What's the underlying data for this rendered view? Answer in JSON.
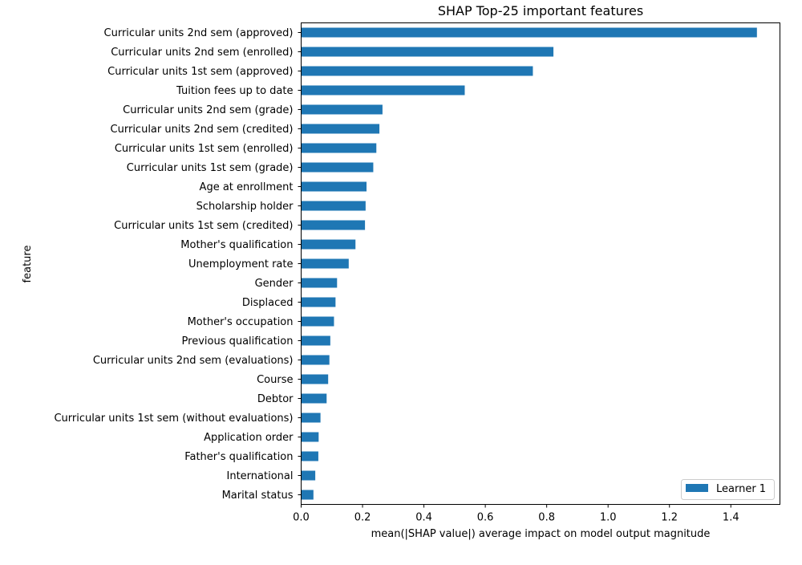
{
  "chart_data": {
    "type": "bar",
    "orientation": "horizontal",
    "title": "SHAP Top-25 important features",
    "xlabel": "mean(|SHAP value|) average impact on model output magnitude",
    "ylabel": "feature",
    "xlim": [
      0.0,
      1.56
    ],
    "xticks": [
      "0.0",
      "0.2",
      "0.4",
      "0.6",
      "0.8",
      "1.0",
      "1.2",
      "1.4"
    ],
    "grid": false,
    "legend_position": "lower-right",
    "bar_color": "#1f77b4",
    "categories": [
      "Curricular units 2nd sem (approved)",
      "Curricular units 2nd sem (enrolled)",
      "Curricular units 1st sem (approved)",
      "Tuition fees up to date",
      "Curricular units 2nd sem (grade)",
      "Curricular units 2nd sem (credited)",
      "Curricular units 1st sem (enrolled)",
      "Curricular units 1st sem (grade)",
      "Age at enrollment",
      "Scholarship holder",
      "Curricular units 1st sem (credited)",
      "Mother's qualification",
      "Unemployment rate",
      "Gender",
      "Displaced",
      "Mother's occupation",
      "Previous qualification",
      "Curricular units 2nd sem (evaluations)",
      "Course",
      "Debtor",
      "Curricular units 1st sem (without evaluations)",
      "Application order",
      "Father's qualification",
      "International",
      "Marital status"
    ],
    "series": [
      {
        "name": "Learner 1",
        "values": [
          1.485,
          0.822,
          0.755,
          0.533,
          0.265,
          0.255,
          0.245,
          0.235,
          0.213,
          0.21,
          0.208,
          0.177,
          0.155,
          0.117,
          0.112,
          0.107,
          0.095,
          0.092,
          0.088,
          0.083,
          0.063,
          0.057,
          0.056,
          0.046,
          0.04
        ]
      }
    ]
  }
}
